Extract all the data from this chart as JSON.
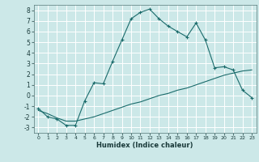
{
  "xlabel": "Humidex (Indice chaleur)",
  "background_color": "#cce8e8",
  "grid_color": "#ffffff",
  "line_color": "#1a6b6b",
  "xlim": [
    -0.5,
    23.5
  ],
  "ylim": [
    -3.5,
    8.5
  ],
  "xticks": [
    0,
    1,
    2,
    3,
    4,
    5,
    6,
    7,
    8,
    9,
    10,
    11,
    12,
    13,
    14,
    15,
    16,
    17,
    18,
    19,
    20,
    21,
    22,
    23
  ],
  "yticks": [
    -3,
    -2,
    -1,
    0,
    1,
    2,
    3,
    4,
    5,
    6,
    7,
    8
  ],
  "series1_x": [
    0,
    1,
    2,
    3,
    4,
    5,
    6,
    7,
    8,
    9,
    10,
    11,
    12,
    13,
    14,
    15,
    16,
    17,
    18,
    19,
    20,
    21,
    22,
    23
  ],
  "series1_y": [
    -1.2,
    -2.0,
    -2.2,
    -2.8,
    -2.8,
    -0.5,
    1.2,
    1.1,
    3.2,
    5.2,
    7.2,
    7.8,
    8.1,
    7.2,
    6.5,
    6.0,
    5.5,
    6.8,
    5.2,
    2.6,
    2.7,
    2.4,
    0.5,
    -0.2
  ],
  "series2_x": [
    0,
    1,
    2,
    3,
    4,
    5,
    6,
    7,
    8,
    9,
    10,
    11,
    12,
    13,
    14,
    15,
    16,
    17,
    18,
    19,
    20,
    21,
    22,
    23
  ],
  "series2_y": [
    -1.4,
    -1.7,
    -2.1,
    -2.4,
    -2.4,
    -2.2,
    -2.0,
    -1.7,
    -1.4,
    -1.1,
    -0.8,
    -0.6,
    -0.3,
    0.0,
    0.2,
    0.5,
    0.7,
    1.0,
    1.3,
    1.6,
    1.9,
    2.1,
    2.3,
    2.4
  ]
}
